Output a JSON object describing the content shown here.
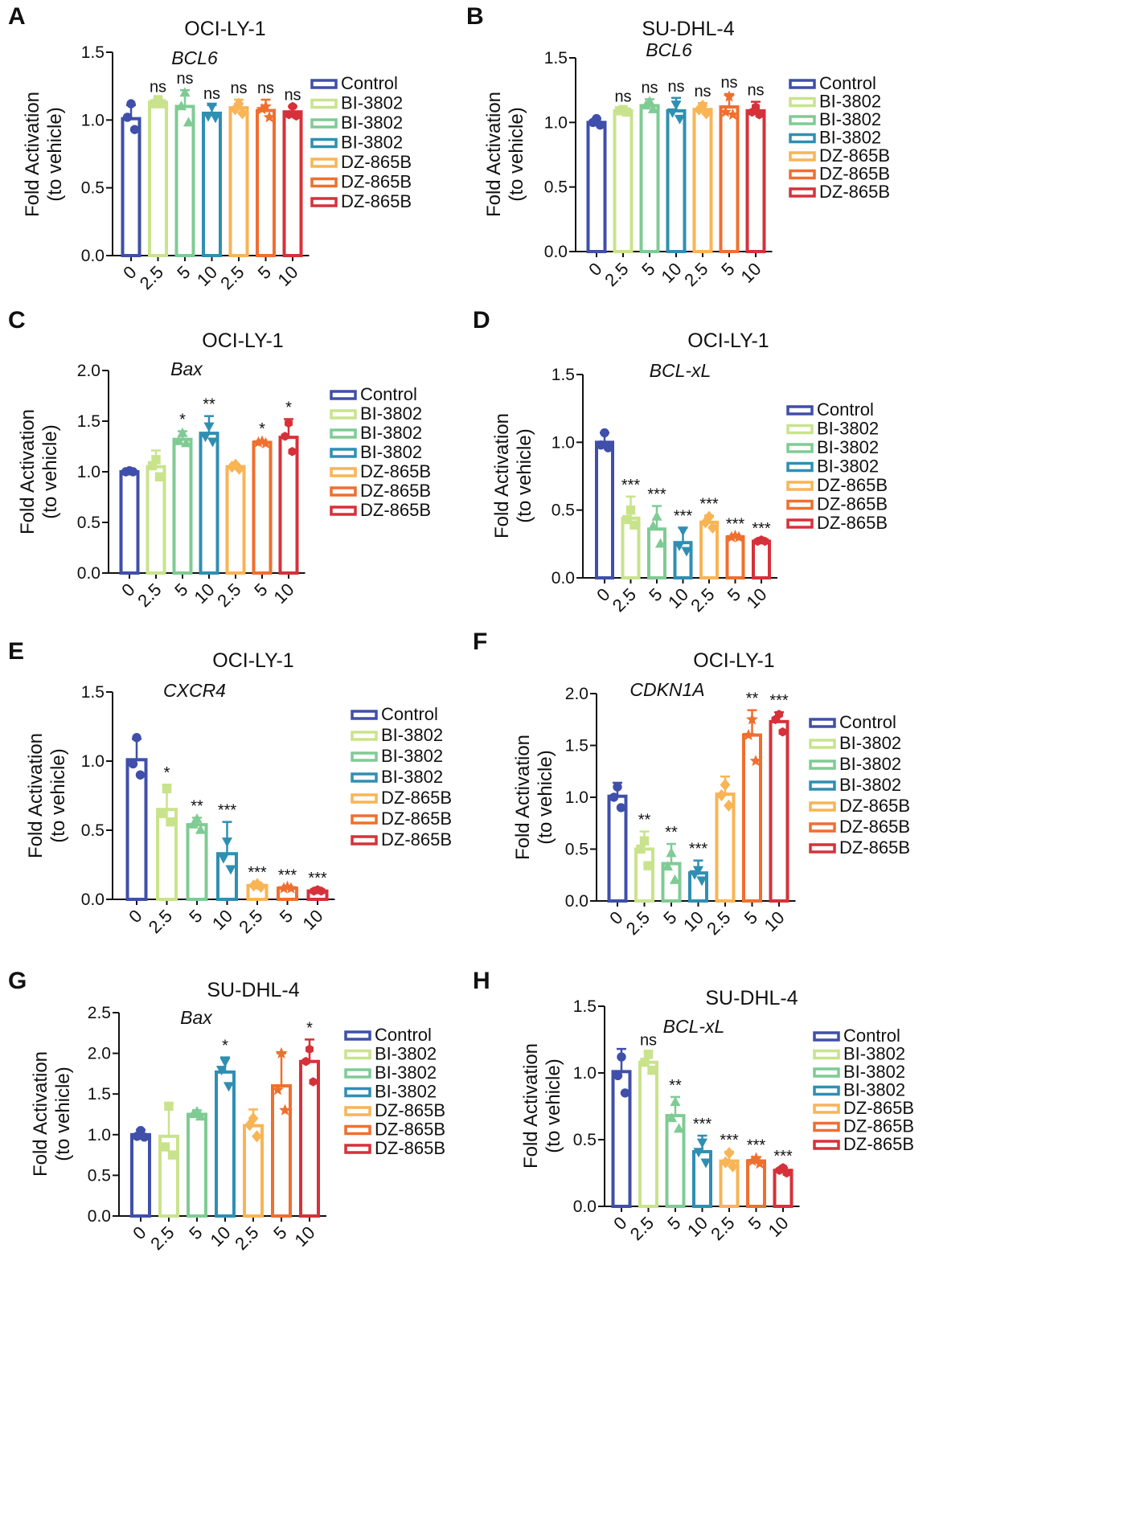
{
  "figure": {
    "panel_count": 8
  },
  "colors": {
    "Control": "#3f4faa",
    "BI-3802 2.5": "#c9e38c",
    "BI-3802 5": "#7fcb94",
    "BI-3802 10": "#2f8fb2",
    "DZ-865B 2.5": "#f9b455",
    "DZ-865B 5": "#ef6f2f",
    "DZ-865B 10": "#d6313a"
  },
  "chart_data": [
    {
      "id": "A",
      "type": "bar",
      "letter": "A",
      "title": "OCI-LY-1",
      "gene": "BCL6",
      "ylabel_line1": "Fold Activation",
      "ylabel_line2": "(to vehicle)",
      "ylim": [
        0,
        1.5
      ],
      "yticks": [
        "0.0",
        "0.5",
        "1.0",
        "1.5"
      ],
      "categories": [
        "0",
        "2.5",
        "5",
        "10",
        "2.5",
        "5",
        "10"
      ],
      "values": [
        1.01,
        1.13,
        1.1,
        1.05,
        1.09,
        1.07,
        1.06
      ],
      "errors": [
        0.1,
        0.03,
        0.12,
        0.06,
        0.06,
        0.08,
        0.04
      ],
      "points": [
        [
          1.12,
          1.02,
          0.93
        ],
        [
          1.15,
          1.12,
          1.12
        ],
        [
          1.2,
          1.1,
          0.98
        ],
        [
          1.1,
          1.03,
          1.02
        ],
        [
          1.12,
          1.08,
          1.05
        ],
        [
          1.1,
          1.08,
          1.02
        ],
        [
          1.1,
          1.04,
          1.03
        ]
      ],
      "markers": [
        "circle",
        "square",
        "triangle",
        "tri-down",
        "diamond",
        "star",
        "hexagon"
      ],
      "significance": [
        "",
        "ns",
        "ns",
        "ns",
        "ns",
        "ns",
        "ns"
      ],
      "legend": [
        "Control",
        "BI-3802",
        "BI-3802",
        "BI-3802",
        "DZ-865B",
        "DZ-865B",
        "DZ-865B"
      ]
    },
    {
      "id": "B",
      "type": "bar",
      "letter": "B",
      "title": "SU-DHL-4",
      "gene": "BCL6",
      "ylabel_line1": "Fold Activation",
      "ylabel_line2": "(to vehicle)",
      "ylim": [
        0,
        1.5
      ],
      "yticks": [
        "0.0",
        "0.5",
        "1.0",
        "1.5"
      ],
      "categories": [
        "0",
        "2.5",
        "5",
        "10",
        "2.5",
        "5",
        "10"
      ],
      "values": [
        1.0,
        1.09,
        1.13,
        1.09,
        1.1,
        1.12,
        1.09
      ],
      "errors": [
        0.03,
        0.02,
        0.05,
        0.1,
        0.05,
        0.1,
        0.07
      ],
      "points": [
        [
          1.03,
          1.0,
          0.98
        ],
        [
          1.1,
          1.09,
          1.08
        ],
        [
          1.16,
          1.13,
          1.1
        ],
        [
          1.14,
          1.08,
          1.03
        ],
        [
          1.13,
          1.1,
          1.07
        ],
        [
          1.2,
          1.08,
          1.06
        ],
        [
          1.12,
          1.08,
          1.06
        ]
      ],
      "markers": [
        "circle",
        "square",
        "triangle",
        "tri-down",
        "diamond",
        "star",
        "hexagon"
      ],
      "significance": [
        "",
        "ns",
        "ns",
        "ns",
        "ns",
        "ns",
        "ns"
      ],
      "legend": [
        "Control",
        "BI-3802",
        "BI-3802",
        "BI-3802",
        "DZ-865B",
        "DZ-865B",
        "DZ-865B"
      ]
    },
    {
      "id": "C",
      "type": "bar",
      "letter": "C",
      "title": "OCI-LY-1",
      "gene": "Bax",
      "ylabel_line1": "Fold Activation",
      "ylabel_line2": "(to vehicle)",
      "ylim": [
        0,
        2.0
      ],
      "yticks": [
        "0.0",
        "0.5",
        "1.0",
        "1.5",
        "2.0"
      ],
      "categories": [
        "0",
        "2.5",
        "5",
        "10",
        "2.5",
        "5",
        "10"
      ],
      "values": [
        1.0,
        1.05,
        1.32,
        1.38,
        1.05,
        1.29,
        1.34
      ],
      "errors": [
        0.01,
        0.16,
        0.08,
        0.17,
        0.02,
        0.02,
        0.18
      ],
      "points": [
        [
          1.01,
          1.0,
          1.0
        ],
        [
          1.12,
          1.06,
          0.95
        ],
        [
          1.38,
          1.3,
          1.28
        ],
        [
          1.45,
          1.35,
          1.3
        ],
        [
          1.07,
          1.05,
          1.03
        ],
        [
          1.3,
          1.29,
          1.28
        ],
        [
          1.48,
          1.35,
          1.2
        ]
      ],
      "markers": [
        "circle",
        "square",
        "triangle",
        "tri-down",
        "diamond",
        "star",
        "hexagon"
      ],
      "significance": [
        "",
        "",
        "*",
        "**",
        "",
        "*",
        "*"
      ],
      "legend": [
        "Control",
        "BI-3802",
        "BI-3802",
        "BI-3802",
        "DZ-865B",
        "DZ-865B",
        "DZ-865B"
      ]
    },
    {
      "id": "D",
      "type": "bar",
      "letter": "D",
      "title": "OCI-LY-1",
      "gene": "BCL-xL",
      "ylabel_line1": "Fold Activation",
      "ylabel_line2": "(to vehicle)",
      "ylim": [
        0,
        1.5
      ],
      "yticks": [
        "0.0",
        "0.5",
        "1.0",
        "1.5"
      ],
      "categories": [
        "0",
        "2.5",
        "5",
        "10",
        "2.5",
        "5",
        "10"
      ],
      "values": [
        1.0,
        0.44,
        0.36,
        0.26,
        0.41,
        0.3,
        0.27
      ],
      "errors": [
        0.07,
        0.16,
        0.17,
        0.11,
        0.05,
        0.01,
        0.01
      ],
      "points": [
        [
          1.07,
          0.98,
          0.96
        ],
        [
          0.5,
          0.43,
          0.39
        ],
        [
          0.45,
          0.38,
          0.25
        ],
        [
          0.35,
          0.24,
          0.2
        ],
        [
          0.45,
          0.41,
          0.37
        ],
        [
          0.31,
          0.3,
          0.3
        ],
        [
          0.28,
          0.27,
          0.27
        ]
      ],
      "markers": [
        "circle",
        "square",
        "triangle",
        "tri-down",
        "diamond",
        "star",
        "hexagon"
      ],
      "significance": [
        "",
        "***",
        "***",
        "***",
        "***",
        "***",
        "***"
      ],
      "legend": [
        "Control",
        "BI-3802",
        "BI-3802",
        "BI-3802",
        "DZ-865B",
        "DZ-865B",
        "DZ-865B"
      ]
    },
    {
      "id": "E",
      "type": "bar",
      "letter": "E",
      "title": "OCI-LY-1",
      "gene": "CXCR4",
      "ylabel_line1": "Fold Activation",
      "ylabel_line2": "(to vehicle)",
      "ylim": [
        0,
        1.5
      ],
      "yticks": [
        "0.0",
        "0.5",
        "1.0",
        "1.5"
      ],
      "categories": [
        "0",
        "2.5",
        "5",
        "10",
        "2.5",
        "5",
        "10"
      ],
      "values": [
        1.01,
        0.65,
        0.54,
        0.33,
        0.1,
        0.08,
        0.06
      ],
      "errors": [
        0.15,
        0.18,
        0.05,
        0.23,
        0.01,
        0.01,
        0.01
      ],
      "points": [
        [
          1.17,
          0.98,
          0.9
        ],
        [
          0.8,
          0.62,
          0.56
        ],
        [
          0.58,
          0.54,
          0.5
        ],
        [
          0.42,
          0.3,
          0.22
        ],
        [
          0.11,
          0.1,
          0.09
        ],
        [
          0.09,
          0.08,
          0.08
        ],
        [
          0.07,
          0.06,
          0.06
        ]
      ],
      "markers": [
        "circle",
        "square",
        "triangle",
        "tri-down",
        "diamond",
        "star",
        "hexagon"
      ],
      "significance": [
        "",
        "*",
        "**",
        "***",
        "***",
        "***",
        "***"
      ],
      "legend": [
        "Control",
        "BI-3802",
        "BI-3802",
        "BI-3802",
        "DZ-865B",
        "DZ-865B",
        "DZ-865B"
      ]
    },
    {
      "id": "F",
      "type": "bar",
      "letter": "F",
      "title": "OCI-LY-1",
      "gene": "CDKN1A",
      "ylabel_line1": "Fold Activation",
      "ylabel_line2": "(to vehicle)",
      "ylim": [
        0,
        2.0
      ],
      "yticks": [
        "0.0",
        "0.5",
        "1.0",
        "1.5",
        "2.0"
      ],
      "categories": [
        "0",
        "2.5",
        "5",
        "10",
        "2.5",
        "5",
        "10"
      ],
      "values": [
        1.01,
        0.5,
        0.36,
        0.27,
        1.03,
        1.6,
        1.73
      ],
      "errors": [
        0.13,
        0.17,
        0.19,
        0.12,
        0.17,
        0.24,
        0.09
      ],
      "points": [
        [
          1.1,
          1.0,
          0.9
        ],
        [
          0.58,
          0.5,
          0.34
        ],
        [
          0.46,
          0.33,
          0.2
        ],
        [
          0.3,
          0.26,
          0.2
        ],
        [
          1.12,
          1.02,
          0.92
        ],
        [
          1.75,
          1.6,
          1.35
        ],
        [
          1.8,
          1.75,
          1.63
        ]
      ],
      "markers": [
        "circle",
        "square",
        "triangle",
        "tri-down",
        "diamond",
        "star",
        "hexagon"
      ],
      "significance": [
        "",
        "**",
        "**",
        "***",
        "",
        "**",
        "***"
      ],
      "legend": [
        "Control",
        "BI-3802",
        "BI-3802",
        "BI-3802",
        "DZ-865B",
        "DZ-865B",
        "DZ-865B"
      ]
    },
    {
      "id": "G",
      "type": "bar",
      "letter": "G",
      "title": "SU-DHL-4",
      "gene": "Bax",
      "ylabel_line1": "Fold Activation",
      "ylabel_line2": "(to vehicle)",
      "ylim": [
        0,
        2.5
      ],
      "yticks": [
        "0.0",
        "0.5",
        "1.0",
        "1.5",
        "2.0",
        "2.5"
      ],
      "categories": [
        "0",
        "2.5",
        "5",
        "10",
        "2.5",
        "5",
        "10"
      ],
      "values": [
        1.0,
        0.98,
        1.25,
        1.77,
        1.11,
        1.6,
        1.9
      ],
      "errors": [
        0.06,
        0.4,
        0.05,
        0.18,
        0.2,
        0.4,
        0.27
      ],
      "points": [
        [
          1.05,
          0.98,
          0.97
        ],
        [
          1.35,
          0.85,
          0.75
        ],
        [
          1.28,
          1.25,
          1.22
        ],
        [
          1.9,
          1.8,
          1.6
        ],
        [
          1.2,
          1.12,
          0.98
        ],
        [
          2.0,
          1.55,
          1.3
        ],
        [
          2.05,
          1.9,
          1.65
        ]
      ],
      "markers": [
        "circle",
        "square",
        "triangle",
        "tri-down",
        "diamond",
        "star",
        "hexagon"
      ],
      "significance": [
        "",
        "",
        "",
        "*",
        "",
        "",
        "*"
      ],
      "legend": [
        "Control",
        "BI-3802",
        "BI-3802",
        "BI-3802",
        "DZ-865B",
        "DZ-865B",
        "DZ-865B"
      ]
    },
    {
      "id": "H",
      "type": "bar",
      "letter": "H",
      "title": "SU-DHL-4",
      "gene": "BCL-xL",
      "ylabel_line1": "Fold Activation",
      "ylabel_line2": "(to vehicle)",
      "ylim": [
        0,
        1.5
      ],
      "yticks": [
        "0.0",
        "0.5",
        "1.0",
        "1.5"
      ],
      "categories": [
        "0",
        "2.5",
        "5",
        "10",
        "2.5",
        "5",
        "10"
      ],
      "values": [
        1.01,
        1.08,
        0.68,
        0.41,
        0.34,
        0.34,
        0.27
      ],
      "errors": [
        0.17,
        0.08,
        0.14,
        0.12,
        0.07,
        0.03,
        0.02
      ],
      "points": [
        [
          1.12,
          0.98,
          0.85
        ],
        [
          1.14,
          1.08,
          1.02
        ],
        [
          0.78,
          0.66,
          0.58
        ],
        [
          0.48,
          0.41,
          0.33
        ],
        [
          0.4,
          0.33,
          0.3
        ],
        [
          0.36,
          0.34,
          0.32
        ],
        [
          0.29,
          0.27,
          0.25
        ]
      ],
      "markers": [
        "circle",
        "square",
        "triangle",
        "tri-down",
        "diamond",
        "star",
        "hexagon"
      ],
      "significance": [
        "",
        "ns",
        "**",
        "***",
        "***",
        "***",
        "***"
      ],
      "legend": [
        "Control",
        "BI-3802",
        "BI-3802",
        "BI-3802",
        "DZ-865B",
        "DZ-865B",
        "DZ-865B"
      ]
    }
  ]
}
